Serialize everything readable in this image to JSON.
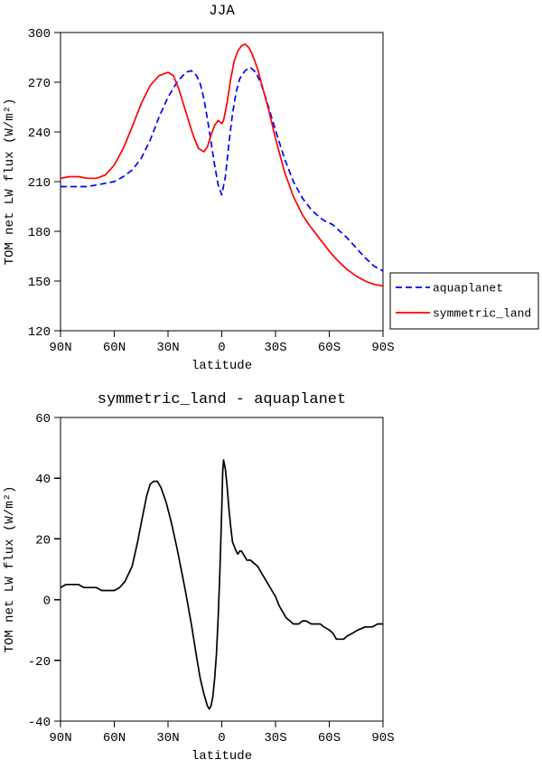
{
  "colors": {
    "aquaplanet": "#0000ff",
    "symmetric_land": "#ff0000",
    "difference": "#000000",
    "axis": "#000000"
  },
  "chart_data": [
    {
      "type": "line",
      "title": "JJA",
      "xlabel": "latitude",
      "ylabel": "TOM net LW flux (W/m²)",
      "xlim": [
        90,
        -90
      ],
      "ylim": [
        120,
        300
      ],
      "grid": false,
      "legend": {
        "show": true,
        "position": "right-outside"
      },
      "xticks": [
        {
          "value": 90,
          "label": "90N"
        },
        {
          "value": 60,
          "label": "60N"
        },
        {
          "value": 30,
          "label": "30N"
        },
        {
          "value": 0,
          "label": "0"
        },
        {
          "value": -30,
          "label": "30S"
        },
        {
          "value": -60,
          "label": "60S"
        },
        {
          "value": -90,
          "label": "90S"
        }
      ],
      "yticks": [
        120,
        150,
        180,
        210,
        240,
        270,
        300
      ],
      "series": [
        {
          "name": "aquaplanet",
          "color": "#0000ff",
          "dash": "7,4",
          "points": [
            [
              90,
              207
            ],
            [
              85,
              207
            ],
            [
              80,
              207
            ],
            [
              75,
              207
            ],
            [
              70,
              208
            ],
            [
              65,
              209
            ],
            [
              60,
              210
            ],
            [
              55,
              213
            ],
            [
              50,
              217
            ],
            [
              45,
              224
            ],
            [
              40,
              235
            ],
            [
              35,
              249
            ],
            [
              30,
              261
            ],
            [
              25,
              270
            ],
            [
              20,
              276
            ],
            [
              17,
              277
            ],
            [
              14,
              274
            ],
            [
              12,
              269
            ],
            [
              10,
              260
            ],
            [
              8,
              248
            ],
            [
              6,
              234
            ],
            [
              4,
              220
            ],
            [
              2,
              208
            ],
            [
              0,
              202
            ],
            [
              -2,
              213
            ],
            [
              -4,
              233
            ],
            [
              -6,
              251
            ],
            [
              -8,
              264
            ],
            [
              -10,
              272
            ],
            [
              -13,
              277
            ],
            [
              -16,
              279
            ],
            [
              -19,
              276
            ],
            [
              -22,
              269
            ],
            [
              -25,
              259
            ],
            [
              -30,
              241
            ],
            [
              -35,
              224
            ],
            [
              -40,
              210
            ],
            [
              -45,
              200
            ],
            [
              -50,
              193
            ],
            [
              -55,
              188
            ],
            [
              -58,
              186
            ],
            [
              -62,
              184
            ],
            [
              -65,
              181
            ],
            [
              -70,
              176
            ],
            [
              -75,
              170
            ],
            [
              -80,
              164
            ],
            [
              -85,
              159
            ],
            [
              -90,
              156
            ]
          ]
        },
        {
          "name": "symmetric_land",
          "color": "#ff0000",
          "dash": null,
          "points": [
            [
              90,
              212
            ],
            [
              85,
              213
            ],
            [
              80,
              213
            ],
            [
              75,
              212
            ],
            [
              70,
              212
            ],
            [
              65,
              214
            ],
            [
              60,
              220
            ],
            [
              55,
              230
            ],
            [
              50,
              243
            ],
            [
              45,
              257
            ],
            [
              40,
              268
            ],
            [
              35,
              274
            ],
            [
              30,
              276
            ],
            [
              27,
              274
            ],
            [
              24,
              266
            ],
            [
              20,
              252
            ],
            [
              16,
              238
            ],
            [
              13,
              230
            ],
            [
              10,
              228
            ],
            [
              8,
              231
            ],
            [
              6,
              238
            ],
            [
              4,
              244
            ],
            [
              2,
              247
            ],
            [
              0,
              245
            ],
            [
              -1,
              247
            ],
            [
              -3,
              258
            ],
            [
              -5,
              272
            ],
            [
              -7,
              283
            ],
            [
              -9,
              289
            ],
            [
              -11,
              292
            ],
            [
              -13,
              293
            ],
            [
              -15,
              291
            ],
            [
              -17,
              287
            ],
            [
              -20,
              278
            ],
            [
              -23,
              266
            ],
            [
              -26,
              254
            ],
            [
              -30,
              236
            ],
            [
              -35,
              216
            ],
            [
              -40,
              201
            ],
            [
              -45,
              190
            ],
            [
              -48,
              185
            ],
            [
              -50,
              182
            ],
            [
              -53,
              178
            ],
            [
              -55,
              175
            ],
            [
              -58,
              171
            ],
            [
              -60,
              168
            ],
            [
              -65,
              162
            ],
            [
              -70,
              157
            ],
            [
              -75,
              153
            ],
            [
              -80,
              150
            ],
            [
              -85,
              148
            ],
            [
              -90,
              147
            ]
          ]
        }
      ]
    },
    {
      "type": "line",
      "title": "symmetric_land - aquaplanet",
      "xlabel": "latitude",
      "ylabel": "TOM net LW flux (W/m²)",
      "xlim": [
        90,
        -90
      ],
      "ylim": [
        -40,
        60
      ],
      "grid": false,
      "legend": {
        "show": false
      },
      "xticks": [
        {
          "value": 90,
          "label": "90N"
        },
        {
          "value": 60,
          "label": "60N"
        },
        {
          "value": 30,
          "label": "30N"
        },
        {
          "value": 0,
          "label": "0"
        },
        {
          "value": -30,
          "label": "30S"
        },
        {
          "value": -60,
          "label": "60S"
        },
        {
          "value": -90,
          "label": "90S"
        }
      ],
      "yticks": [
        -40,
        -20,
        0,
        20,
        40,
        60
      ],
      "series": [
        {
          "name": "difference",
          "color": "#000000",
          "dash": null,
          "points": [
            [
              90,
              4
            ],
            [
              87,
              5
            ],
            [
              84,
              5
            ],
            [
              80,
              5
            ],
            [
              77,
              4
            ],
            [
              74,
              4
            ],
            [
              70,
              4
            ],
            [
              67,
              3
            ],
            [
              63,
              3
            ],
            [
              60,
              3
            ],
            [
              57,
              4
            ],
            [
              54,
              6
            ],
            [
              50,
              11
            ],
            [
              47,
              19
            ],
            [
              44,
              28
            ],
            [
              42,
              34
            ],
            [
              40,
              38
            ],
            [
              38,
              39
            ],
            [
              36,
              39
            ],
            [
              34,
              37
            ],
            [
              31,
              32
            ],
            [
              28,
              25
            ],
            [
              25,
              17
            ],
            [
              22,
              8
            ],
            [
              20,
              2
            ],
            [
              17,
              -8
            ],
            [
              14,
              -19
            ],
            [
              12,
              -26
            ],
            [
              10,
              -31
            ],
            [
              8,
              -35
            ],
            [
              7,
              -36
            ],
            [
              6,
              -35
            ],
            [
              5,
              -32
            ],
            [
              4,
              -26
            ],
            [
              3,
              -18
            ],
            [
              2,
              -6
            ],
            [
              1,
              10
            ],
            [
              0,
              30
            ],
            [
              -0.5,
              42
            ],
            [
              -1,
              46
            ],
            [
              -2,
              43
            ],
            [
              -3,
              37
            ],
            [
              -4,
              30
            ],
            [
              -5,
              24
            ],
            [
              -6,
              19
            ],
            [
              -8,
              16
            ],
            [
              -9,
              15
            ],
            [
              -10,
              16
            ],
            [
              -11,
              16
            ],
            [
              -12,
              15
            ],
            [
              -14,
              13
            ],
            [
              -16,
              13
            ],
            [
              -18,
              12
            ],
            [
              -20,
              11
            ],
            [
              -22,
              9
            ],
            [
              -25,
              6
            ],
            [
              -28,
              3
            ],
            [
              -30,
              1
            ],
            [
              -32,
              -2
            ],
            [
              -34,
              -4
            ],
            [
              -36,
              -6
            ],
            [
              -38,
              -7
            ],
            [
              -40,
              -8
            ],
            [
              -43,
              -8
            ],
            [
              -45,
              -7
            ],
            [
              -47,
              -7
            ],
            [
              -50,
              -8
            ],
            [
              -53,
              -8
            ],
            [
              -55,
              -8
            ],
            [
              -57,
              -9
            ],
            [
              -60,
              -10
            ],
            [
              -62,
              -11
            ],
            [
              -64,
              -13
            ],
            [
              -66,
              -13
            ],
            [
              -68,
              -13
            ],
            [
              -70,
              -12
            ],
            [
              -73,
              -11
            ],
            [
              -76,
              -10
            ],
            [
              -80,
              -9
            ],
            [
              -84,
              -9
            ],
            [
              -87,
              -8
            ],
            [
              -90,
              -8
            ]
          ]
        }
      ]
    }
  ]
}
